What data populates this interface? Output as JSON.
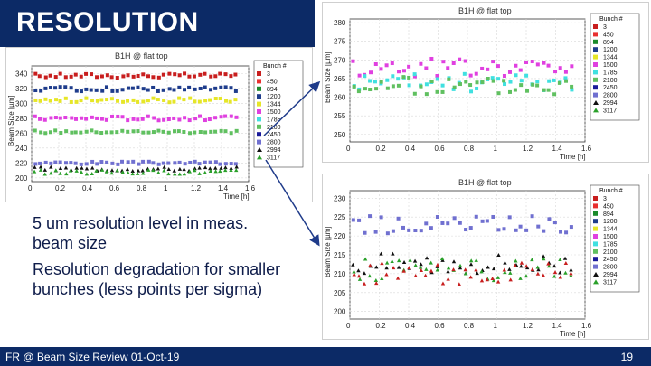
{
  "slide": {
    "title": "RESOLUTION",
    "bullets": [
      "5 um resolution level in meas. beam size",
      "Resolution degradation for smaller bunches (less points per sigma)"
    ],
    "footer": "FR @ Beam Size Review 01-Oct-19",
    "page_number": "19"
  },
  "colors": {
    "header_blue": "#0c2a66",
    "arrow": "#1f3b8a"
  },
  "legend": {
    "title": "Bunch #",
    "entries": [
      {
        "label": "3",
        "color": "#c81e1e",
        "marker": "square"
      },
      {
        "label": "450",
        "color": "#e83030",
        "marker": "square"
      },
      {
        "label": "894",
        "color": "#1a8a2a",
        "marker": "square"
      },
      {
        "label": "1200",
        "color": "#1e3c8c",
        "marker": "square"
      },
      {
        "label": "1344",
        "color": "#e6e628",
        "marker": "square"
      },
      {
        "label": "1500",
        "color": "#e040e0",
        "marker": "square"
      },
      {
        "label": "1785",
        "color": "#40e0e0",
        "marker": "square"
      },
      {
        "label": "2100",
        "color": "#60c060",
        "marker": "square"
      },
      {
        "label": "2450",
        "color": "#1a1a9a",
        "marker": "square"
      },
      {
        "label": "2800",
        "color": "#7070d0",
        "marker": "square"
      },
      {
        "label": "2994",
        "color": "#111111",
        "marker": "triangle"
      },
      {
        "label": "3117",
        "color": "#2aa02a",
        "marker": "triangle"
      }
    ]
  },
  "chart_data": [
    {
      "type": "scatter",
      "title": "B1H @ flat top",
      "xlabel": "Time [h]",
      "ylabel": "Beam Size [µm]",
      "xticks": [
        "0",
        "0.2",
        "0.4",
        "0.6",
        "0.8",
        "1",
        "1.2",
        "1.4",
        "1.6"
      ],
      "yticks": [
        "200",
        "220",
        "240",
        "260",
        "280",
        "300",
        "320",
        "340"
      ],
      "xlim": [
        0,
        1.6
      ],
      "ylim": [
        195,
        350
      ],
      "grid": true,
      "legend_position": "right",
      "series": [
        {
          "name": "3",
          "color": "#c81e1e",
          "marker": "square",
          "center": 337,
          "spread": 3
        },
        {
          "name": "1200",
          "color": "#1e3c8c",
          "marker": "square",
          "center": 319,
          "spread": 3
        },
        {
          "name": "1344",
          "color": "#e6e628",
          "marker": "square",
          "center": 304,
          "spread": 3
        },
        {
          "name": "1500",
          "color": "#e040e0",
          "marker": "square",
          "center": 280,
          "spread": 3
        },
        {
          "name": "2100",
          "color": "#60c060",
          "marker": "square",
          "center": 262,
          "spread": 2
        },
        {
          "name": "2800",
          "color": "#7070d0",
          "marker": "square",
          "center": 220,
          "spread": 2
        },
        {
          "name": "2994",
          "color": "#111111",
          "marker": "triangle",
          "center": 212,
          "spread": 3
        },
        {
          "name": "3117",
          "color": "#2aa02a",
          "marker": "triangle",
          "center": 208,
          "spread": 3
        }
      ]
    },
    {
      "type": "scatter",
      "title": "B1H @ flat top",
      "xlabel": "Time [h]",
      "ylabel": "Beam Size [µm]",
      "xticks": [
        "0",
        "0.2",
        "0.4",
        "0.6",
        "0.8",
        "1",
        "1.2",
        "1.4",
        "1.6"
      ],
      "yticks": [
        "250",
        "255",
        "260",
        "265",
        "270",
        "275",
        "280"
      ],
      "xlim": [
        0,
        1.6
      ],
      "ylim": [
        248,
        281
      ],
      "grid": true,
      "legend_position": "right",
      "series": [
        {
          "name": "1500",
          "color": "#e040e0",
          "marker": "square",
          "center": 268,
          "spread": 2.5
        },
        {
          "name": "1785",
          "color": "#40e0e0",
          "marker": "square",
          "center": 264,
          "spread": 2.5
        },
        {
          "name": "2100",
          "color": "#60c060",
          "marker": "square",
          "center": 263,
          "spread": 2.5
        }
      ]
    },
    {
      "type": "scatter",
      "title": "B1H @ flat top",
      "xlabel": "Time [h]",
      "ylabel": "Beam Size [µm]",
      "xticks": [
        "0",
        "0.2",
        "0.4",
        "0.6",
        "0.8",
        "1",
        "1.2",
        "1.4",
        "1.6"
      ],
      "yticks": [
        "200",
        "205",
        "210",
        "215",
        "220",
        "225",
        "230"
      ],
      "xlim": [
        0,
        1.6
      ],
      "ylim": [
        198,
        232
      ],
      "grid": true,
      "legend_position": "right",
      "series": [
        {
          "name": "2800",
          "color": "#7070d0",
          "marker": "square",
          "center": 223,
          "spread": 2.5
        },
        {
          "name": "2994",
          "color": "#111111",
          "marker": "triangle",
          "center": 213,
          "spread": 3
        },
        {
          "name": "3117",
          "color": "#2aa02a",
          "marker": "triangle",
          "center": 211,
          "spread": 3
        },
        {
          "name": "3",
          "color": "#c81e1e",
          "marker": "triangle",
          "center": 210,
          "spread": 3
        }
      ]
    }
  ]
}
